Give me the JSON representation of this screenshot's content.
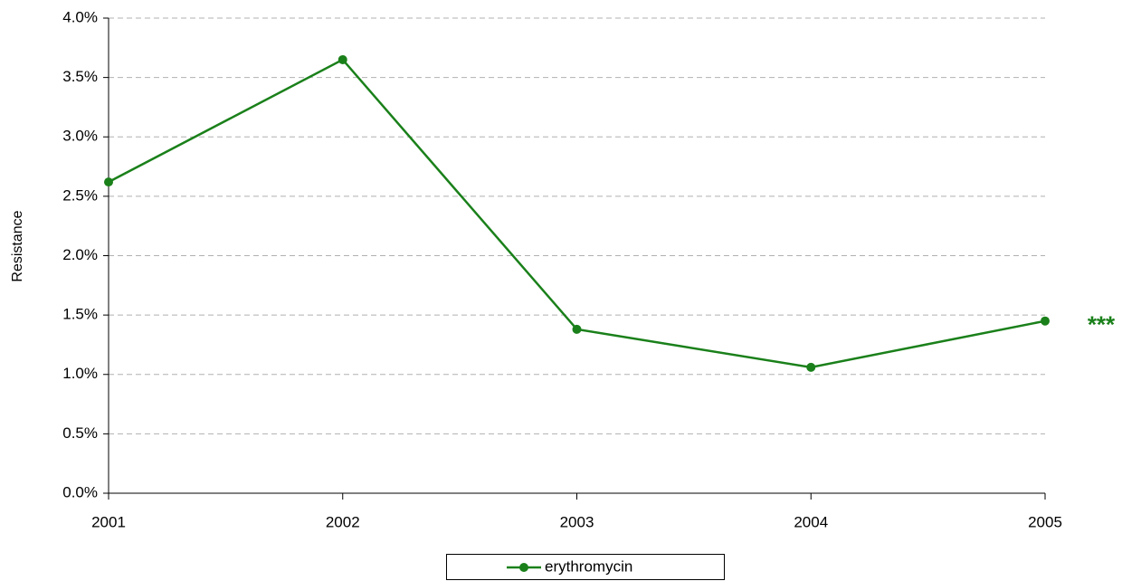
{
  "chart_data": {
    "type": "line",
    "y_label": "Resistance",
    "categories": [
      "2001",
      "2002",
      "2003",
      "2004",
      "2005"
    ],
    "series": [
      {
        "name": "erythromycin",
        "color": "#1a801a",
        "values": [
          2.62,
          3.65,
          1.38,
          1.06,
          1.45
        ]
      }
    ],
    "ylim": [
      0,
      4
    ],
    "yticks": [
      {
        "value": 0,
        "label": "0.0%"
      },
      {
        "value": 0.5,
        "label": "0.5%"
      },
      {
        "value": 1,
        "label": "1.0%"
      },
      {
        "value": 1.5,
        "label": "1.5%"
      },
      {
        "value": 2,
        "label": "2.0%"
      },
      {
        "value": 2.5,
        "label": "2.5%"
      },
      {
        "value": 3,
        "label": "3.0%"
      },
      {
        "value": 3.5,
        "label": "3.5%"
      },
      {
        "value": 4,
        "label": "4.0%"
      }
    ],
    "grid": true,
    "legend": "bottom",
    "annotation": {
      "text": "***",
      "color": "#1a801a"
    }
  }
}
